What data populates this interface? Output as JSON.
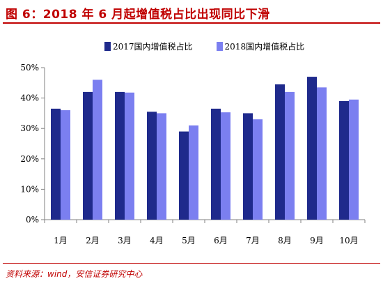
{
  "figure": {
    "title": "图 6：2018 年 6 月起增值税占比出现同比下滑",
    "source": "资料来源：wind，安信证券研究中心"
  },
  "colors": {
    "title_red": "#c00000",
    "series_2017": "#1f2a8c",
    "series_2018": "#7b7ff0",
    "axis": "#808080"
  },
  "chart_data": {
    "type": "bar",
    "categories": [
      "1月",
      "2月",
      "3月",
      "4月",
      "5月",
      "6月",
      "7月",
      "8月",
      "9月",
      "10月"
    ],
    "series": [
      {
        "name": "2017国内增值税占比",
        "values": [
          36.5,
          42.0,
          42.0,
          35.5,
          29.0,
          36.5,
          35.0,
          44.5,
          47.0,
          39.0
        ]
      },
      {
        "name": "2018国内增值税占比",
        "values": [
          36.0,
          46.0,
          41.8,
          35.0,
          31.0,
          35.3,
          33.0,
          42.0,
          43.5,
          39.5
        ]
      }
    ],
    "y_ticks": [
      "0%",
      "10%",
      "20%",
      "30%",
      "40%",
      "50%"
    ],
    "ylim": [
      0,
      50
    ],
    "legend_position": "top",
    "grid": false
  }
}
